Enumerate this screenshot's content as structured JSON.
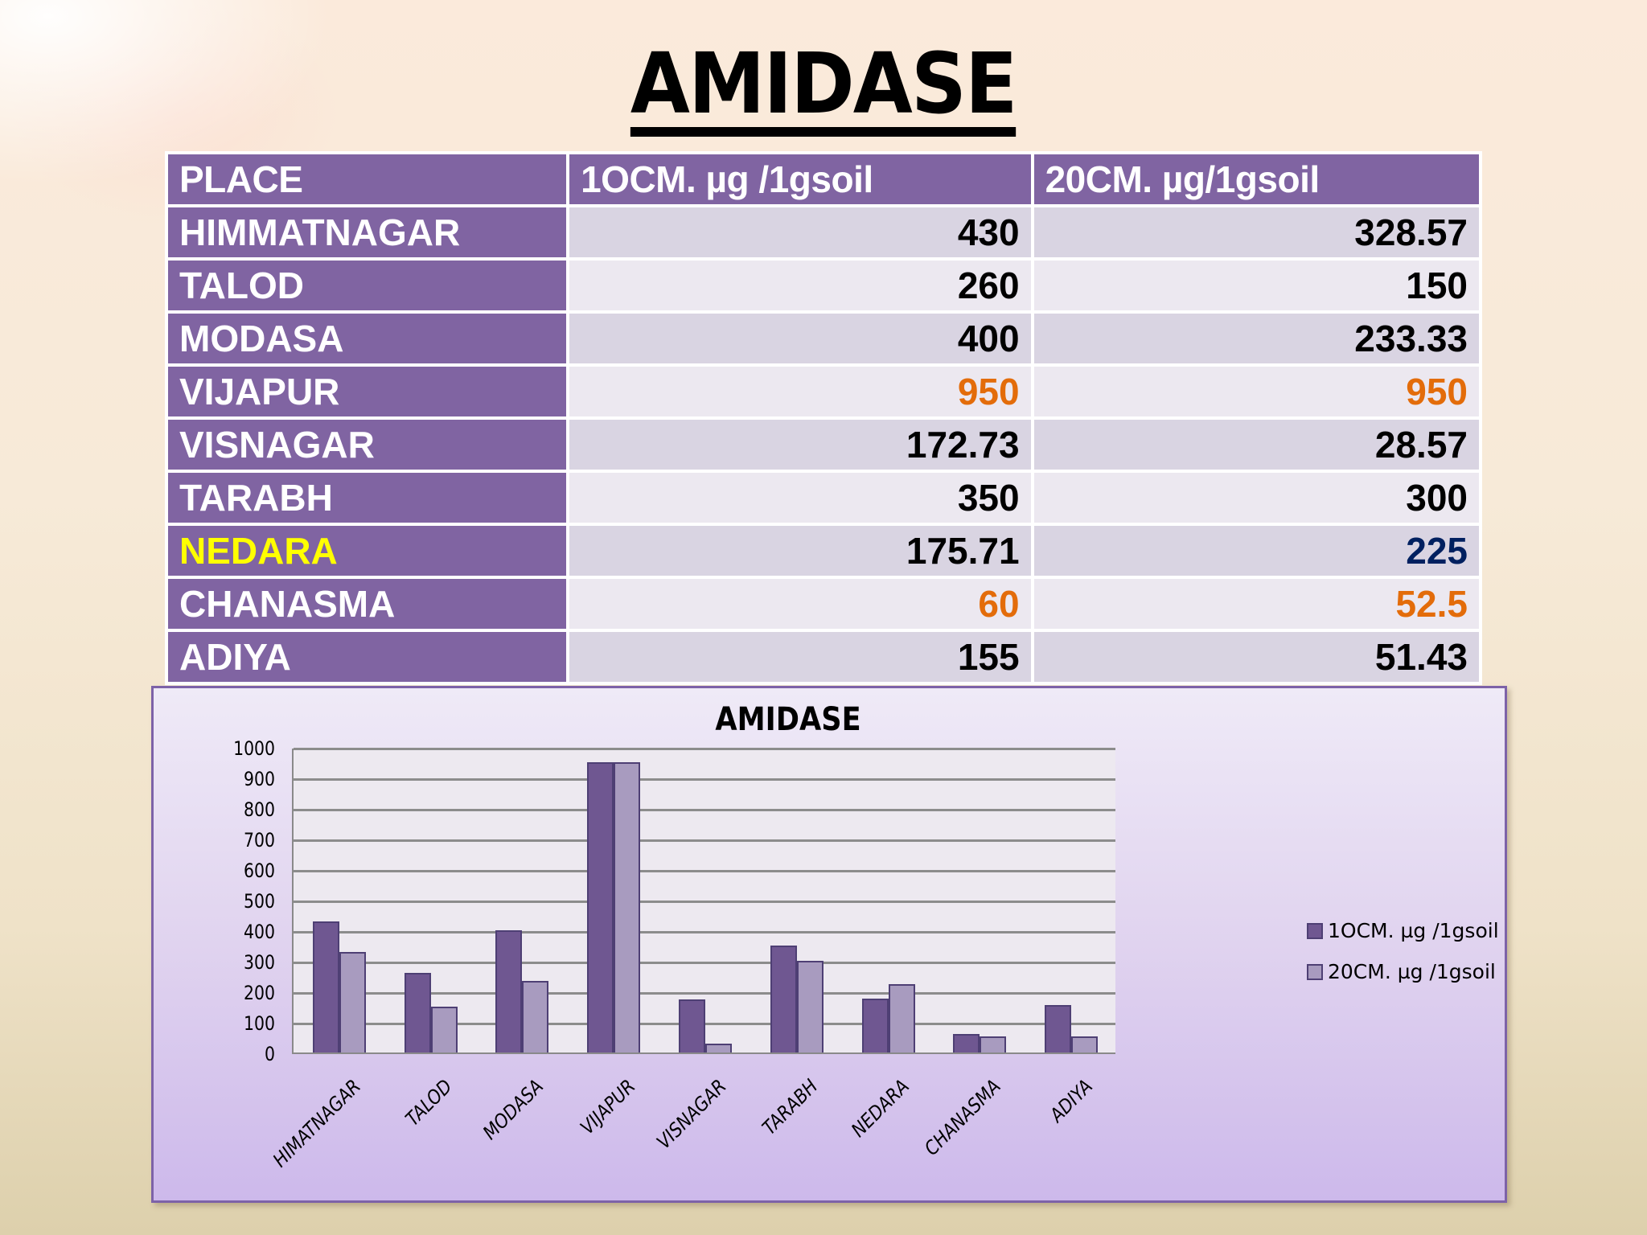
{
  "title": "AMIDASE",
  "table": {
    "headers": [
      "PLACE",
      "1OCM. µg /1gsoil",
      "20CM. µg/1gsoil"
    ],
    "rows": [
      {
        "place": "HIMMATNAGAR",
        "cm10": "430",
        "cm20": "328.57"
      },
      {
        "place": "TALOD",
        "cm10": "260",
        "cm20": "150"
      },
      {
        "place": "MODASA",
        "cm10": "400",
        "cm20": "233.33"
      },
      {
        "place": "VIJAPUR",
        "cm10": "950",
        "cm20": "950"
      },
      {
        "place": "VISNAGAR",
        "cm10": "172.73",
        "cm20": "28.57"
      },
      {
        "place": "TARABH",
        "cm10": "350",
        "cm20": "300"
      },
      {
        "place": "NEDARA",
        "cm10": "175.71",
        "cm20": "225"
      },
      {
        "place": "CHANASMA",
        "cm10": "60",
        "cm20": "52.5"
      },
      {
        "place": "ADIYA",
        "cm10": "155",
        "cm20": "51.43"
      }
    ],
    "highlight_colors": {
      "VIJAPUR.cm10": "#e36c0a",
      "VIJAPUR.cm20": "#e36c0a",
      "NEDARA.place": "#ffff00",
      "NEDARA.cm20": "#002060",
      "CHANASMA.cm10": "#e36c0a",
      "CHANASMA.cm20": "#e36c0a"
    },
    "header_bg": "#8064a2"
  },
  "chart_data": {
    "type": "bar",
    "title": "AMIDASE",
    "categories": [
      "HIMATNAGAR",
      "TALOD",
      "MODASA",
      "VIJAPUR",
      "VISNAGAR",
      "TARABH",
      "NEDARA",
      "CHANASMA",
      "ADIYA"
    ],
    "series": [
      {
        "name": "1OCM. µg /1gsoil",
        "color": "#6f5791",
        "values": [
          430,
          260,
          400,
          950,
          172.73,
          350,
          175.71,
          60,
          155
        ]
      },
      {
        "name": "20CM. µg /1gsoil",
        "color": "#a89bbf",
        "values": [
          328.57,
          150,
          233.33,
          950,
          28.57,
          300,
          225,
          52.5,
          51.43
        ]
      }
    ],
    "xlabel": "",
    "ylabel": "",
    "ylim": [
      0,
      1000
    ],
    "yticks": [
      0,
      100,
      200,
      300,
      400,
      500,
      600,
      700,
      800,
      900,
      1000
    ],
    "grid": true,
    "legend_position": "right"
  }
}
